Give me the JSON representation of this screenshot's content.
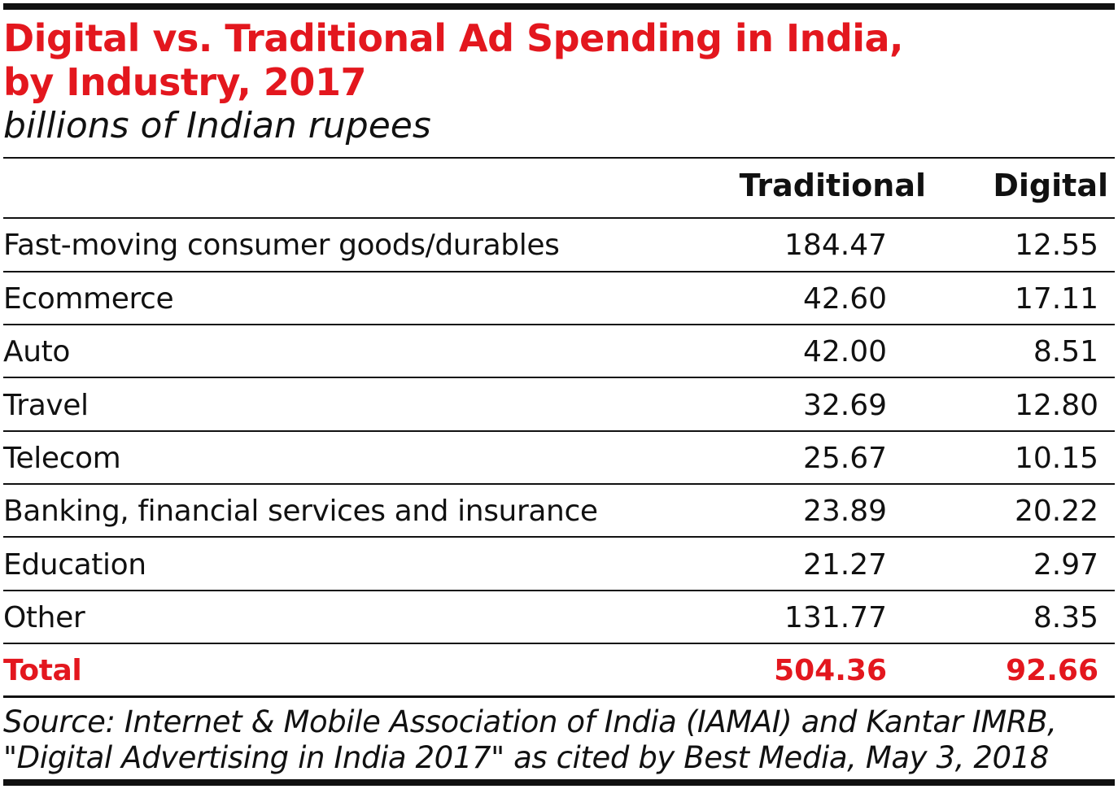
{
  "title_line1": "Digital vs. Traditional Ad Spending in India,",
  "title_line2": "by Industry, 2017",
  "subtitle": "billions of Indian rupees",
  "columns": {
    "traditional": "Traditional",
    "digital": "Digital"
  },
  "rows": [
    {
      "label": "Fast-moving consumer goods/durables",
      "traditional": "184.47",
      "digital": "12.55"
    },
    {
      "label": "Ecommerce",
      "traditional": "42.60",
      "digital": "17.11"
    },
    {
      "label": "Auto",
      "traditional": "42.00",
      "digital": "8.51"
    },
    {
      "label": "Travel",
      "traditional": "32.69",
      "digital": "12.80"
    },
    {
      "label": "Telecom",
      "traditional": "25.67",
      "digital": "10.15"
    },
    {
      "label": "Banking, financial services and insurance",
      "traditional": "23.89",
      "digital": "20.22"
    },
    {
      "label": "Education",
      "traditional": "21.27",
      "digital": "2.97"
    },
    {
      "label": "Other",
      "traditional": "131.77",
      "digital": "8.35"
    }
  ],
  "total": {
    "label": "Total",
    "traditional": "504.36",
    "digital": "92.66"
  },
  "source_line1": "Source: Internet & Mobile Association of India (IAMAI) and Kantar IMRB,",
  "source_line2": "\"Digital Advertising in India 2017\" as cited by Best Media, May 3, 2018",
  "colors": {
    "accent": "#e3171e",
    "text": "#111111",
    "rule": "#111111"
  },
  "chart_data": {
    "type": "table",
    "title": "Digital vs. Traditional Ad Spending in India, by Industry, 2017",
    "subtitle": "billions of Indian rupees",
    "columns": [
      "Traditional",
      "Digital"
    ],
    "categories": [
      "Fast-moving consumer goods/durables",
      "Ecommerce",
      "Auto",
      "Travel",
      "Telecom",
      "Banking, financial services and insurance",
      "Education",
      "Other",
      "Total"
    ],
    "series": [
      {
        "name": "Traditional",
        "values": [
          184.47,
          42.6,
          42.0,
          32.69,
          25.67,
          23.89,
          21.27,
          131.77,
          504.36
        ]
      },
      {
        "name": "Digital",
        "values": [
          12.55,
          17.11,
          8.51,
          12.8,
          10.15,
          20.22,
          2.97,
          8.35,
          92.66
        ]
      }
    ]
  }
}
